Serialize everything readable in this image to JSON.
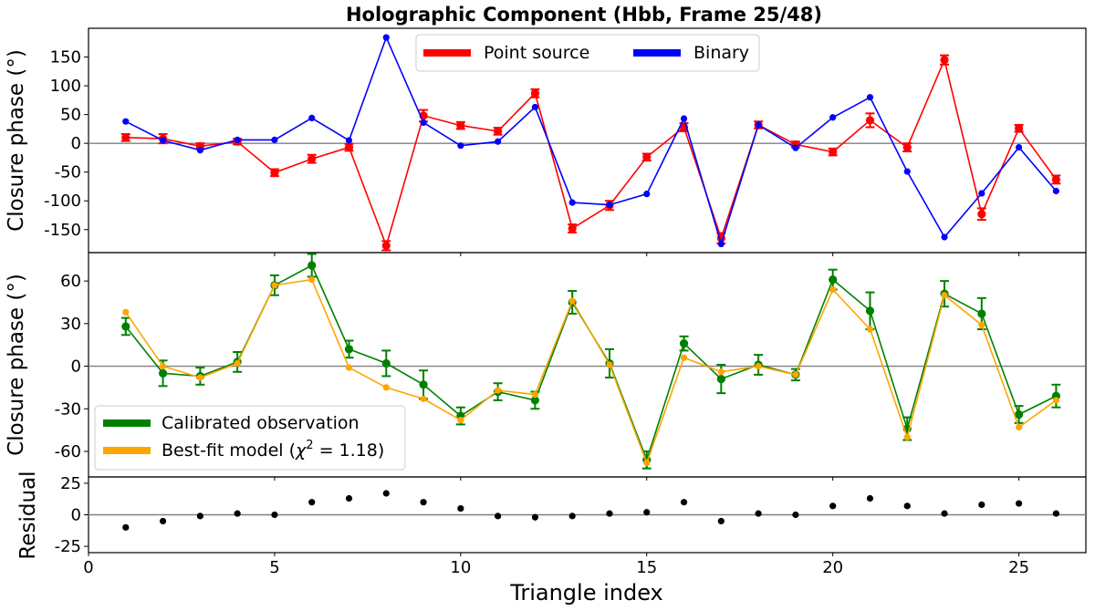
{
  "figure": {
    "title": "Holographic Component (Hbb, Frame 25/48)",
    "xlabel": "Triangle index",
    "colors": {
      "red": "#ff0000",
      "blue": "#0000ff",
      "green": "#008000",
      "orange": "#ffa500",
      "black": "#000000",
      "zero_line": "#808080"
    }
  },
  "chart_data": [
    {
      "type": "line",
      "ylabel": "Closure phase (°)",
      "xlim": [
        0,
        26.8
      ],
      "ylim": [
        -190,
        200
      ],
      "xticks": [
        0,
        5,
        10,
        15,
        20,
        25
      ],
      "yticks": [
        -150,
        -100,
        -50,
        0,
        50,
        100,
        150
      ],
      "grid": false,
      "zero_line": true,
      "legend": {
        "placement": "top-center",
        "columns": 2
      },
      "x": [
        1,
        2,
        3,
        4,
        5,
        6,
        7,
        8,
        9,
        10,
        11,
        12,
        13,
        14,
        15,
        16,
        17,
        18,
        19,
        20,
        21,
        22,
        23,
        24,
        25,
        26
      ],
      "series": [
        {
          "name": "Point source",
          "color": "#ff0000",
          "errorbars": true,
          "values": [
            10,
            8,
            -5,
            3,
            -51,
            -27,
            -7,
            -178,
            48,
            31,
            21,
            87,
            -148,
            -108,
            -24,
            28,
            -165,
            32,
            -2,
            -15,
            40,
            -7,
            145,
            -123,
            26,
            -63
          ],
          "errors": [
            6,
            8,
            5,
            5,
            6,
            7,
            6,
            8,
            10,
            6,
            6,
            7,
            7,
            8,
            6,
            7,
            9,
            6,
            5,
            6,
            12,
            7,
            8,
            10,
            6,
            7
          ]
        },
        {
          "name": "Binary",
          "color": "#0000ff",
          "errorbars": false,
          "values": [
            38,
            5,
            -12,
            6,
            6,
            44,
            5,
            184,
            36,
            -4,
            3,
            63,
            -103,
            -107,
            -88,
            43,
            -175,
            32,
            -8,
            45,
            80,
            -49,
            -163,
            -87,
            -7,
            -83
          ]
        }
      ]
    },
    {
      "type": "line",
      "ylabel": "Closure phase (°)",
      "xlim": [
        0,
        26.8
      ],
      "ylim": [
        -78,
        80
      ],
      "xticks": [
        0,
        5,
        10,
        15,
        20,
        25
      ],
      "yticks": [
        -60,
        -30,
        0,
        30,
        60
      ],
      "grid": false,
      "zero_line": true,
      "legend": {
        "placement": "bottom-left"
      },
      "x": [
        1,
        2,
        3,
        4,
        5,
        6,
        7,
        8,
        9,
        10,
        11,
        12,
        13,
        14,
        15,
        16,
        17,
        18,
        19,
        20,
        21,
        22,
        23,
        24,
        25,
        26
      ],
      "series": [
        {
          "name": "Calibrated observation",
          "color": "#008000",
          "errorbars": true,
          "values": [
            28,
            -5,
            -7,
            3,
            57,
            71,
            12,
            2,
            -13,
            -35,
            -18,
            -24,
            45,
            2,
            -66,
            16,
            -9,
            1,
            -6,
            61,
            39,
            -44,
            51,
            37,
            -34,
            -21
          ],
          "errors": [
            6,
            9,
            6,
            7,
            7,
            8,
            6,
            9,
            10,
            6,
            6,
            6,
            8,
            10,
            6,
            5,
            10,
            7,
            4,
            7,
            13,
            8,
            9,
            11,
            6,
            8
          ]
        },
        {
          "name": "Best-fit model (χ² = 1.18)",
          "color": "#ffa500",
          "errorbars": false,
          "values": [
            38,
            0,
            -8,
            2,
            57,
            61,
            -1,
            -15,
            -23,
            -38,
            -17,
            -20,
            46,
            1,
            -68,
            6,
            -4,
            0,
            -6,
            54,
            26,
            -50,
            50,
            29,
            -43,
            -24
          ]
        }
      ]
    },
    {
      "type": "scatter",
      "ylabel": "Residual",
      "xlabel": "Triangle index",
      "xlim": [
        0,
        26.8
      ],
      "ylim": [
        -30,
        30
      ],
      "xticks": [
        0,
        5,
        10,
        15,
        20,
        25
      ],
      "yticks": [
        -25,
        0,
        25
      ],
      "grid": false,
      "zero_line": true,
      "x": [
        1,
        2,
        3,
        4,
        5,
        6,
        7,
        8,
        9,
        10,
        11,
        12,
        13,
        14,
        15,
        16,
        17,
        18,
        19,
        20,
        21,
        22,
        23,
        24,
        25,
        26
      ],
      "series": [
        {
          "name": "",
          "color": "#000000",
          "values": [
            -10,
            -5,
            -1,
            1,
            0,
            10,
            13,
            17,
            10,
            5,
            -1,
            -2,
            -1,
            1,
            2,
            10,
            -5,
            1,
            0,
            7,
            13,
            7,
            1,
            8,
            9,
            1
          ]
        }
      ]
    }
  ],
  "legend_labels": {
    "point_source": "Point source",
    "binary": "Binary",
    "calibrated": "Calibrated observation",
    "model_prefix": "Best-fit model (",
    "model_chi": "χ",
    "model_sup": "2",
    "model_suffix": " = 1.18)"
  }
}
